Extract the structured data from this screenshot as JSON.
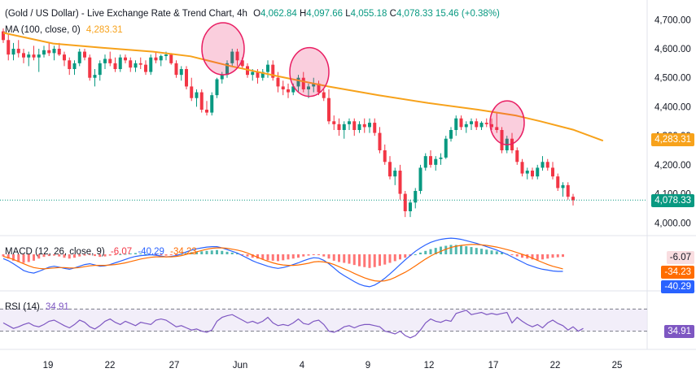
{
  "header": {
    "symbol": "(Gold / US Dollar) - Live Exchange Rate & Trend Chart, 4h",
    "open_label": "O",
    "open": "4,062.84",
    "high_label": "H",
    "high": "4,097.66",
    "low_label": "L",
    "low": "4,055.18",
    "close_label": "C",
    "close": "4,078.33",
    "change": "15.46 (+0.38%)"
  },
  "ma_legend": {
    "label": "MA (100, close, 0)",
    "value": "4,283.31"
  },
  "macd_legend": {
    "label": "MACD (12, 26, close, 9)",
    "hist": "-6.07",
    "macd": "-40.29",
    "signal": "-34.23"
  },
  "rsi_legend": {
    "label": "RSI (14)",
    "value": "34.91"
  },
  "badges": {
    "price": "4,078.33",
    "ma": "4,283.31",
    "macd_hist": "-6.07",
    "macd_signal": "-34.23",
    "macd_line": "-40.29",
    "rsi": "34.91"
  },
  "colors": {
    "up": "#089981",
    "down": "#f23645",
    "ma": "#f7a21b",
    "macd_line": "#2962ff",
    "signal_line": "#ff6d00",
    "rsi_line": "#7e57c2",
    "rsi_band": "#ede7f6",
    "circle": "#e91e63"
  },
  "chart_data": {
    "type": "candlestick",
    "title": "(Gold / US Dollar) - Live Exchange Rate & Trend Chart, 4h",
    "price_axis_ticks": [
      "4,700.00",
      "4,600.00",
      "4,500.00",
      "4,400.00",
      "4,300.00",
      "4,200.00",
      "4,100.00",
      "4,000.00"
    ],
    "ylim": [
      3970,
      4740
    ],
    "x_ticks": [
      "19",
      "22",
      "27",
      "Jun",
      "4",
      "9",
      "12",
      "17",
      "22",
      "25"
    ],
    "x_tick_index": [
      14,
      33,
      52,
      69,
      88,
      107,
      126,
      145,
      164,
      183
    ],
    "ohlc": [
      [
        4660,
        4670,
        4620,
        4630
      ],
      [
        4630,
        4650,
        4560,
        4580
      ],
      [
        4580,
        4620,
        4560,
        4600
      ],
      [
        4600,
        4630,
        4570,
        4585
      ],
      [
        4585,
        4600,
        4550,
        4570
      ],
      [
        4570,
        4590,
        4540,
        4580
      ],
      [
        4580,
        4610,
        4560,
        4570
      ],
      [
        4570,
        4600,
        4520,
        4580
      ],
      [
        4580,
        4610,
        4570,
        4595
      ],
      [
        4595,
        4620,
        4575,
        4585
      ],
      [
        4585,
        4610,
        4560,
        4600
      ],
      [
        4600,
        4620,
        4575,
        4580
      ],
      [
        4580,
        4590,
        4540,
        4560
      ],
      [
        4560,
        4570,
        4510,
        4530
      ],
      [
        4530,
        4560,
        4510,
        4550
      ],
      [
        4550,
        4600,
        4540,
        4590
      ],
      [
        4590,
        4600,
        4560,
        4570
      ],
      [
        4570,
        4580,
        4490,
        4500
      ],
      [
        4500,
        4530,
        4470,
        4510
      ],
      [
        4510,
        4560,
        4490,
        4550
      ],
      [
        4550,
        4580,
        4530,
        4565
      ],
      [
        4565,
        4590,
        4540,
        4550
      ],
      [
        4550,
        4570,
        4520,
        4530
      ],
      [
        4530,
        4580,
        4520,
        4570
      ],
      [
        4570,
        4580,
        4550,
        4560
      ],
      [
        4560,
        4570,
        4520,
        4535
      ],
      [
        4535,
        4560,
        4520,
        4550
      ],
      [
        4550,
        4570,
        4530,
        4545
      ],
      [
        4545,
        4560,
        4510,
        4520
      ],
      [
        4520,
        4580,
        4510,
        4570
      ],
      [
        4570,
        4590,
        4550,
        4560
      ],
      [
        4560,
        4580,
        4540,
        4575
      ],
      [
        4575,
        4590,
        4560,
        4580
      ],
      [
        4580,
        4585,
        4545,
        4550
      ],
      [
        4550,
        4560,
        4500,
        4510
      ],
      [
        4510,
        4540,
        4490,
        4530
      ],
      [
        4530,
        4540,
        4460,
        4470
      ],
      [
        4470,
        4500,
        4420,
        4430
      ],
      [
        4430,
        4460,
        4400,
        4450
      ],
      [
        4450,
        4460,
        4380,
        4390
      ],
      [
        4390,
        4420,
        4370,
        4380
      ],
      [
        4380,
        4450,
        4370,
        4440
      ],
      [
        4440,
        4500,
        4430,
        4495
      ],
      [
        4495,
        4520,
        4480,
        4510
      ],
      [
        4510,
        4560,
        4500,
        4550
      ],
      [
        4550,
        4600,
        4540,
        4590
      ],
      [
        4590,
        4600,
        4540,
        4560
      ],
      [
        4560,
        4570,
        4530,
        4540
      ],
      [
        4540,
        4550,
        4500,
        4510
      ],
      [
        4510,
        4530,
        4490,
        4520
      ],
      [
        4520,
        4530,
        4480,
        4500
      ],
      [
        4500,
        4530,
        4490,
        4520
      ],
      [
        4520,
        4560,
        4500,
        4545
      ],
      [
        4545,
        4560,
        4490,
        4500
      ],
      [
        4500,
        4520,
        4450,
        4470
      ],
      [
        4470,
        4490,
        4440,
        4460
      ],
      [
        4460,
        4480,
        4430,
        4450
      ],
      [
        4450,
        4480,
        4440,
        4470
      ],
      [
        4470,
        4510,
        4450,
        4500
      ],
      [
        4500,
        4520,
        4450,
        4460
      ],
      [
        4460,
        4480,
        4430,
        4470
      ],
      [
        4470,
        4500,
        4450,
        4480
      ],
      [
        4480,
        4490,
        4440,
        4450
      ],
      [
        4450,
        4460,
        4420,
        4430
      ],
      [
        4430,
        4460,
        4340,
        4350
      ],
      [
        4350,
        4370,
        4320,
        4340
      ],
      [
        4340,
        4360,
        4300,
        4320
      ],
      [
        4320,
        4350,
        4290,
        4340
      ],
      [
        4340,
        4360,
        4320,
        4350
      ],
      [
        4350,
        4360,
        4300,
        4320
      ],
      [
        4320,
        4350,
        4310,
        4340
      ],
      [
        4340,
        4360,
        4310,
        4330
      ],
      [
        4330,
        4360,
        4310,
        4345
      ],
      [
        4345,
        4360,
        4300,
        4310
      ],
      [
        4310,
        4330,
        4240,
        4250
      ],
      [
        4250,
        4270,
        4200,
        4210
      ],
      [
        4210,
        4230,
        4150,
        4160
      ],
      [
        4160,
        4190,
        4130,
        4180
      ],
      [
        4180,
        4200,
        4080,
        4100
      ],
      [
        4100,
        4110,
        4020,
        4040
      ],
      [
        4040,
        4080,
        4020,
        4070
      ],
      [
        4070,
        4120,
        4050,
        4110
      ],
      [
        4110,
        4200,
        4100,
        4190
      ],
      [
        4190,
        4240,
        4180,
        4230
      ],
      [
        4230,
        4250,
        4190,
        4200
      ],
      [
        4200,
        4230,
        4180,
        4220
      ],
      [
        4220,
        4240,
        4200,
        4225
      ],
      [
        4225,
        4300,
        4220,
        4290
      ],
      [
        4290,
        4330,
        4280,
        4320
      ],
      [
        4320,
        4370,
        4300,
        4360
      ],
      [
        4360,
        4370,
        4320,
        4330
      ],
      [
        4330,
        4350,
        4310,
        4340
      ],
      [
        4340,
        4360,
        4320,
        4350
      ],
      [
        4350,
        4360,
        4320,
        4330
      ],
      [
        4330,
        4350,
        4320,
        4345
      ],
      [
        4345,
        4360,
        4330,
        4340
      ],
      [
        4340,
        4360,
        4320,
        4330
      ],
      [
        4330,
        4380,
        4310,
        4320
      ],
      [
        4320,
        4330,
        4240,
        4250
      ],
      [
        4250,
        4300,
        4240,
        4290
      ],
      [
        4290,
        4310,
        4240,
        4250
      ],
      [
        4250,
        4260,
        4200,
        4210
      ],
      [
        4210,
        4220,
        4160,
        4170
      ],
      [
        4170,
        4190,
        4150,
        4180
      ],
      [
        4180,
        4190,
        4150,
        4160
      ],
      [
        4160,
        4200,
        4150,
        4190
      ],
      [
        4190,
        4230,
        4180,
        4210
      ],
      [
        4210,
        4220,
        4180,
        4190
      ],
      [
        4190,
        4210,
        4150,
        4160
      ],
      [
        4160,
        4170,
        4110,
        4120
      ],
      [
        4120,
        4140,
        4090,
        4130
      ],
      [
        4130,
        4140,
        4080,
        4090
      ],
      [
        4090,
        4100,
        4060,
        4078
      ]
    ],
    "ma100": [
      [
        0,
        4655
      ],
      [
        20,
        4618
      ],
      [
        40,
        4603
      ],
      [
        60,
        4590
      ],
      [
        75,
        4574
      ],
      [
        90,
        4542
      ],
      [
        110,
        4505
      ],
      [
        130,
        4470
      ],
      [
        150,
        4440
      ],
      [
        170,
        4413
      ],
      [
        190,
        4390
      ],
      [
        205,
        4370
      ],
      [
        215,
        4350
      ],
      [
        228,
        4321
      ],
      [
        240,
        4283
      ]
    ],
    "macd": {
      "ylim": [
        -80,
        40
      ],
      "hist": [
        -5,
        -10,
        -15,
        -18,
        -20,
        -18,
        -15,
        -10,
        -6,
        -4,
        -3,
        -5,
        -8,
        -10,
        -8,
        -5,
        -3,
        -2,
        -4,
        -6,
        -5,
        -3,
        -1,
        0,
        1,
        2,
        3,
        2,
        1,
        0,
        -1,
        -2,
        -3,
        -2,
        -1,
        1,
        3,
        5,
        6,
        7,
        8,
        9,
        10,
        8,
        6,
        4,
        2,
        -2,
        -5,
        -8,
        -10,
        -12,
        -14,
        -15,
        -16,
        -14,
        -12,
        -10,
        -8,
        -5,
        -3,
        -1,
        -2,
        -5,
        -10,
        -15,
        -18,
        -20,
        -22,
        -25,
        -28,
        -30,
        -32,
        -30,
        -27,
        -24,
        -20,
        -16,
        -12,
        -8,
        -4,
        0,
        4,
        8,
        12,
        15,
        18,
        20,
        22,
        22,
        21,
        19,
        17,
        15,
        13,
        11,
        9,
        7,
        4,
        1,
        -2,
        -5,
        -8,
        -10,
        -12,
        -13,
        -12,
        -10,
        -8,
        -7,
        -6
      ],
      "macd": [
        -10,
        -15,
        -22,
        -30,
        -38,
        -42,
        -44,
        -40,
        -35,
        -30,
        -28,
        -30,
        -33,
        -35,
        -32,
        -28,
        -24,
        -22,
        -25,
        -28,
        -27,
        -24,
        -20,
        -16,
        -12,
        -8,
        -5,
        -3,
        -2,
        -1,
        -2,
        -4,
        -6,
        -5,
        -3,
        1,
        6,
        10,
        13,
        15,
        17,
        18,
        18,
        15,
        11,
        7,
        3,
        -3,
        -9,
        -15,
        -20,
        -24,
        -28,
        -31,
        -33,
        -31,
        -28,
        -24,
        -20,
        -15,
        -11,
        -8,
        -9,
        -14,
        -22,
        -32,
        -42,
        -50,
        -57,
        -64,
        -70,
        -74,
        -76,
        -72,
        -65,
        -56,
        -46,
        -35,
        -24,
        -13,
        -3,
        7,
        15,
        22,
        28,
        32,
        35,
        37,
        38,
        37,
        35,
        32,
        29,
        26,
        22,
        18,
        14,
        10,
        5,
        0,
        -6,
        -12,
        -18,
        -24,
        -28,
        -32,
        -35,
        -37,
        -39,
        -40,
        -40
      ],
      "signal": [
        -5,
        -8,
        -12,
        -17,
        -22,
        -27,
        -31,
        -33,
        -34,
        -33,
        -32,
        -31,
        -31,
        -32,
        -32,
        -31,
        -29,
        -27,
        -26,
        -26,
        -26,
        -25,
        -24,
        -22,
        -20,
        -17,
        -14,
        -11,
        -9,
        -7,
        -6,
        -6,
        -6,
        -6,
        -5,
        -3,
        0,
        3,
        6,
        9,
        12,
        14,
        15,
        15,
        14,
        12,
        10,
        7,
        3,
        -2,
        -7,
        -12,
        -16,
        -20,
        -23,
        -25,
        -26,
        -26,
        -25,
        -23,
        -21,
        -18,
        -17,
        -18,
        -20,
        -24,
        -29,
        -34,
        -39,
        -45,
        -50,
        -55,
        -59,
        -62,
        -63,
        -62,
        -59,
        -54,
        -48,
        -42,
        -35,
        -27,
        -19,
        -11,
        -4,
        2,
        7,
        12,
        16,
        19,
        21,
        22,
        23,
        23,
        22,
        21,
        19,
        17,
        14,
        11,
        8,
        4,
        0,
        -4,
        -9,
        -14,
        -19,
        -24,
        -28,
        -31,
        -34
      ]
    },
    "rsi": {
      "ylim": [
        0,
        100
      ],
      "upper": 70,
      "lower": 30,
      "values": [
        45,
        40,
        35,
        38,
        42,
        45,
        40,
        38,
        42,
        48,
        50,
        45,
        40,
        36,
        42,
        50,
        46,
        38,
        34,
        40,
        48,
        52,
        46,
        42,
        48,
        44,
        40,
        46,
        44,
        42,
        50,
        52,
        50,
        44,
        38,
        40,
        36,
        32,
        34,
        30,
        28,
        32,
        48,
        55,
        58,
        60,
        55,
        50,
        45,
        48,
        44,
        48,
        55,
        45,
        40,
        42,
        40,
        45,
        52,
        44,
        42,
        48,
        50,
        42,
        30,
        28,
        32,
        38,
        40,
        36,
        40,
        42,
        42,
        40,
        38,
        30,
        28,
        25,
        30,
        22,
        18,
        22,
        32,
        45,
        52,
        48,
        46,
        50,
        48,
        62,
        65,
        68,
        60,
        62,
        64,
        60,
        62,
        60,
        62,
        64,
        45,
        55,
        48,
        42,
        38,
        42,
        36,
        45,
        50,
        44,
        40,
        32,
        38,
        30,
        35
      ]
    }
  }
}
